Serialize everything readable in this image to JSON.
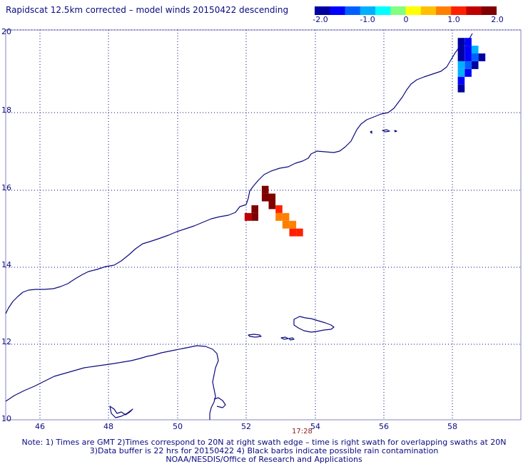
{
  "title": "Rapidscat 12.5km corrected – model winds 20150422 descending",
  "colorbar": {
    "tick_labels": [
      "-2.0",
      "-1.0",
      "0",
      "1.0",
      "2.0"
    ],
    "colors": [
      "#0000a0",
      "#0000ff",
      "#0060ff",
      "#00b0ff",
      "#00ffff",
      "#80ff80",
      "#ffff00",
      "#ffc000",
      "#ff8000",
      "#ff2000",
      "#c00000",
      "#800000"
    ]
  },
  "map": {
    "lon_ticks": [
      "46",
      "48",
      "50",
      "52",
      "54",
      "56",
      "58"
    ],
    "lat_ticks": [
      "20",
      "18",
      "16",
      "14",
      "12",
      "10"
    ],
    "pass_time": "17:28",
    "coast_color": "#0a0a80",
    "grid_color": "#0a0a80"
  },
  "wind_cells": [
    {
      "lon": 58.25,
      "lat": 19.75,
      "v": -2.0
    },
    {
      "lon": 58.45,
      "lat": 19.75,
      "v": -1.6
    },
    {
      "lon": 58.25,
      "lat": 19.55,
      "v": -2.0
    },
    {
      "lon": 58.45,
      "lat": 19.55,
      "v": -1.4
    },
    {
      "lon": 58.65,
      "lat": 19.55,
      "v": -0.8
    },
    {
      "lon": 58.25,
      "lat": 19.35,
      "v": -1.9
    },
    {
      "lon": 58.45,
      "lat": 19.35,
      "v": -1.4
    },
    {
      "lon": 58.65,
      "lat": 19.35,
      "v": -1.2
    },
    {
      "lon": 58.85,
      "lat": 19.35,
      "v": -1.9
    },
    {
      "lon": 58.25,
      "lat": 19.15,
      "v": -0.9
    },
    {
      "lon": 58.45,
      "lat": 19.15,
      "v": -1.3
    },
    {
      "lon": 58.65,
      "lat": 19.15,
      "v": -2.0
    },
    {
      "lon": 58.25,
      "lat": 18.95,
      "v": -0.8
    },
    {
      "lon": 58.45,
      "lat": 18.95,
      "v": -1.5
    },
    {
      "lon": 58.25,
      "lat": 18.75,
      "v": -1.4
    },
    {
      "lon": 58.25,
      "lat": 18.55,
      "v": -1.8
    },
    {
      "lon": 52.55,
      "lat": 15.95,
      "v": 2.0
    },
    {
      "lon": 52.55,
      "lat": 15.75,
      "v": 2.0
    },
    {
      "lon": 52.75,
      "lat": 15.75,
      "v": 2.0
    },
    {
      "lon": 52.75,
      "lat": 15.55,
      "v": 2.0
    },
    {
      "lon": 52.25,
      "lat": 15.45,
      "v": 2.0
    },
    {
      "lon": 52.05,
      "lat": 15.25,
      "v": 1.6
    },
    {
      "lon": 52.25,
      "lat": 15.25,
      "v": 2.0
    },
    {
      "lon": 52.95,
      "lat": 15.45,
      "v": 1.1
    },
    {
      "lon": 52.95,
      "lat": 15.25,
      "v": 0.9
    },
    {
      "lon": 53.15,
      "lat": 15.25,
      "v": 0.7
    },
    {
      "lon": 53.15,
      "lat": 15.05,
      "v": 0.8
    },
    {
      "lon": 53.35,
      "lat": 15.05,
      "v": 0.9
    },
    {
      "lon": 53.35,
      "lat": 14.85,
      "v": 1.3
    },
    {
      "lon": 53.55,
      "lat": 14.85,
      "v": 1.1
    }
  ],
  "notes": [
    "Note: 1) Times are GMT 2)Times correspond to 20N at right swath edge – time is right swath for overlapping swaths at 20N",
    "3)Data buffer is 22 hrs for 20150422 4) Black barbs indicate possible rain contamination",
    "NOAA/NESDIS/Office of Research and Applications"
  ]
}
